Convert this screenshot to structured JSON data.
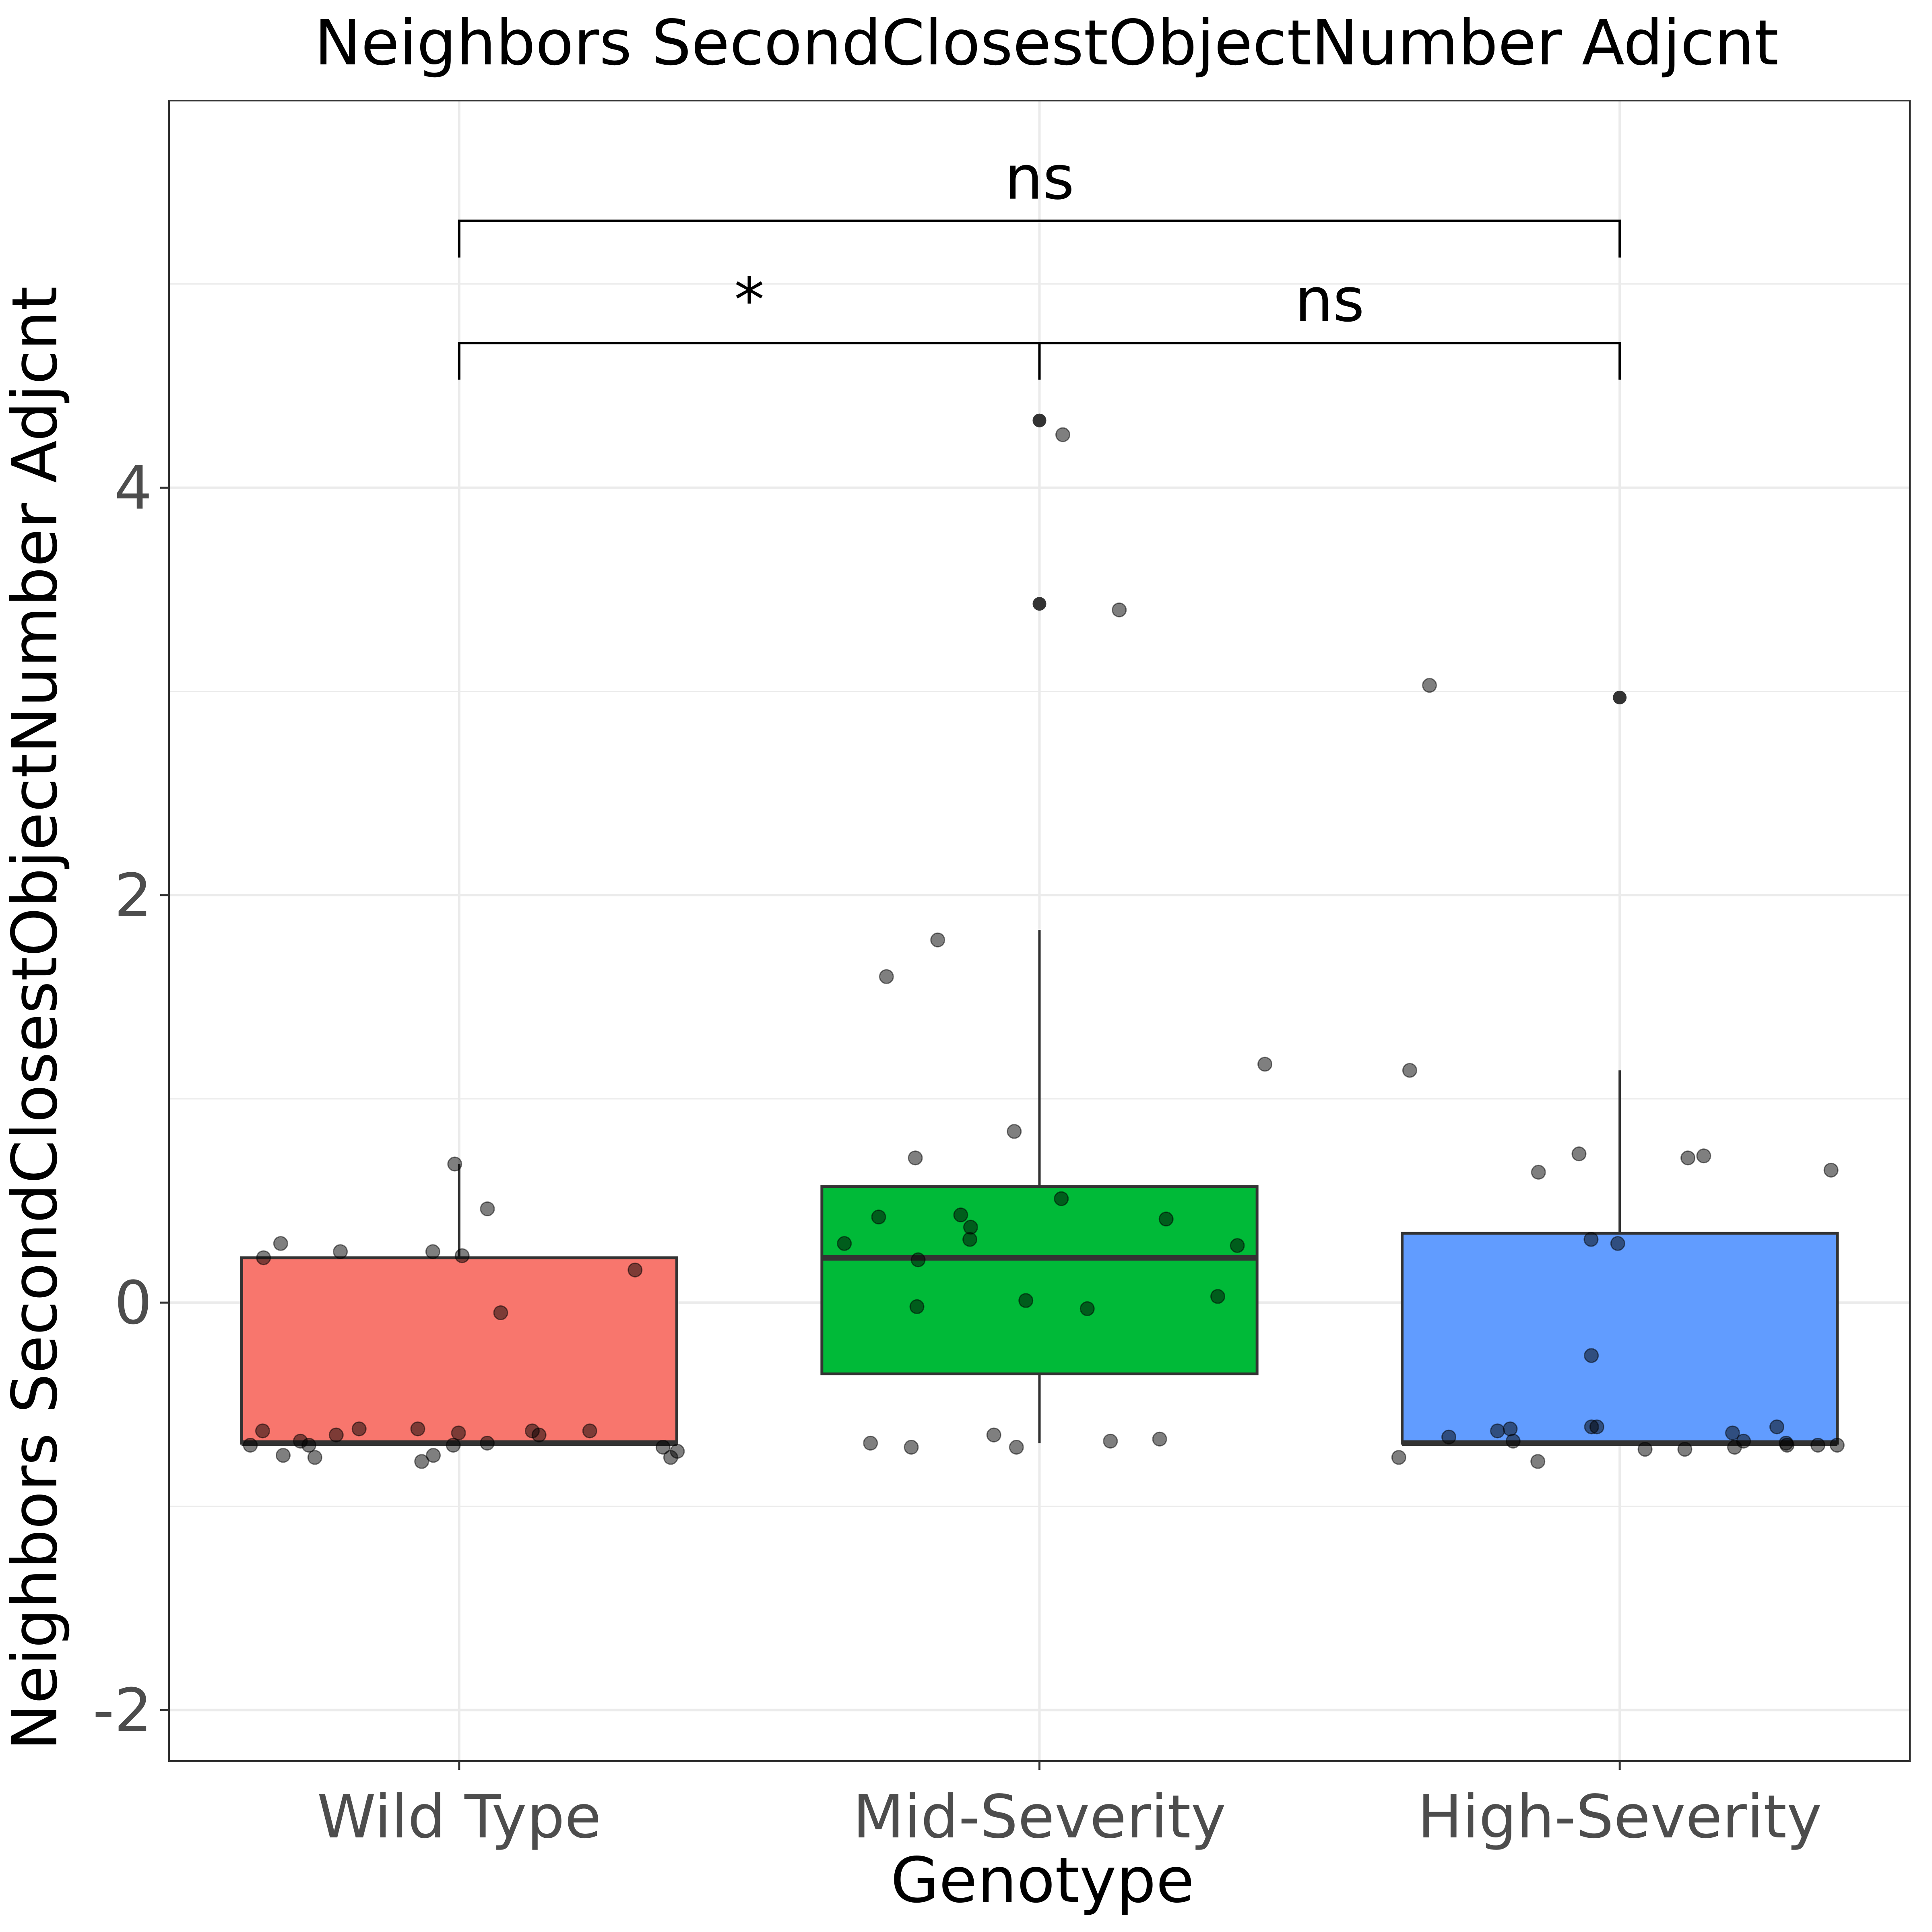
{
  "chart_data": {
    "type": "box",
    "title": "Neighbors SecondClosestObjectNumber Adjcnt",
    "xlabel": "Genotype",
    "ylabel": "Neighbors SecondClosestObjectNumber Adjcnt",
    "ylim": [
      -2.25,
      5.9
    ],
    "yticks": [
      -2,
      0,
      2,
      4
    ],
    "ytick_labels": [
      "-2",
      "0",
      "2",
      "4"
    ],
    "grid": true,
    "categories": [
      "Wild Type",
      "Mid-Severity",
      "High-Severity"
    ],
    "boxes": [
      {
        "category": "Wild Type",
        "color": "#F8766D",
        "q1": -0.69,
        "median": -0.69,
        "q3": 0.22,
        "whisker_low": -0.69,
        "whisker_high": 0.68
      },
      {
        "category": "Mid-Severity",
        "color": "#00BA38",
        "q1": -0.35,
        "median": 0.22,
        "q3": 0.57,
        "whisker_low": -0.69,
        "whisker_high": 1.83
      },
      {
        "category": "High-Severity",
        "color": "#619CFF",
        "q1": -0.69,
        "median": -0.69,
        "q3": 0.34,
        "whisker_low": -0.69,
        "whisker_high": 1.14
      }
    ],
    "outliers": [
      {
        "category": "Mid-Severity",
        "values": [
          4.33,
          3.43
        ]
      },
      {
        "category": "High-Severity",
        "values": [
          2.97
        ]
      }
    ],
    "points": [
      {
        "category": "Wild Type",
        "values": [
          0.68,
          0.46,
          0.29,
          0.25,
          0.25,
          0.23,
          0.22,
          0.16,
          -0.05,
          -0.62,
          -0.62,
          -0.63,
          -0.63,
          -0.63,
          -0.64,
          -0.65,
          -0.65,
          -0.68,
          -0.69,
          -0.7,
          -0.7,
          -0.7,
          -0.71,
          -0.73,
          -0.75,
          -0.75,
          -0.76,
          -0.76,
          -0.78
        ]
      },
      {
        "category": "Mid-Severity",
        "values": [
          4.26,
          3.4,
          1.78,
          1.6,
          1.17,
          0.84,
          0.71,
          0.51,
          0.43,
          0.42,
          0.41,
          0.37,
          0.31,
          0.29,
          0.28,
          0.21,
          0.03,
          0.01,
          -0.02,
          -0.03,
          -0.65,
          -0.67,
          -0.68,
          -0.69,
          -0.71,
          -0.71
        ]
      },
      {
        "category": "High-Severity",
        "values": [
          3.03,
          1.14,
          0.73,
          0.72,
          0.71,
          0.65,
          0.64,
          0.31,
          0.29,
          -0.26,
          -0.61,
          -0.61,
          -0.61,
          -0.62,
          -0.63,
          -0.64,
          -0.66,
          -0.68,
          -0.68,
          -0.69,
          -0.7,
          -0.7,
          -0.7,
          -0.71,
          -0.72,
          -0.72,
          -0.76,
          -0.78
        ]
      }
    ],
    "comparisons": [
      {
        "from": "Wild Type",
        "to": "High-Severity",
        "label": "ns",
        "y": 5.31,
        "tip_length": 0.18
      },
      {
        "from": "Wild Type",
        "to": "Mid-Severity",
        "label": "*",
        "y": 4.71,
        "tip_length": 0.18
      },
      {
        "from": "Mid-Severity",
        "to": "High-Severity",
        "label": "ns",
        "y": 4.71,
        "tip_length": 0.18
      }
    ]
  }
}
